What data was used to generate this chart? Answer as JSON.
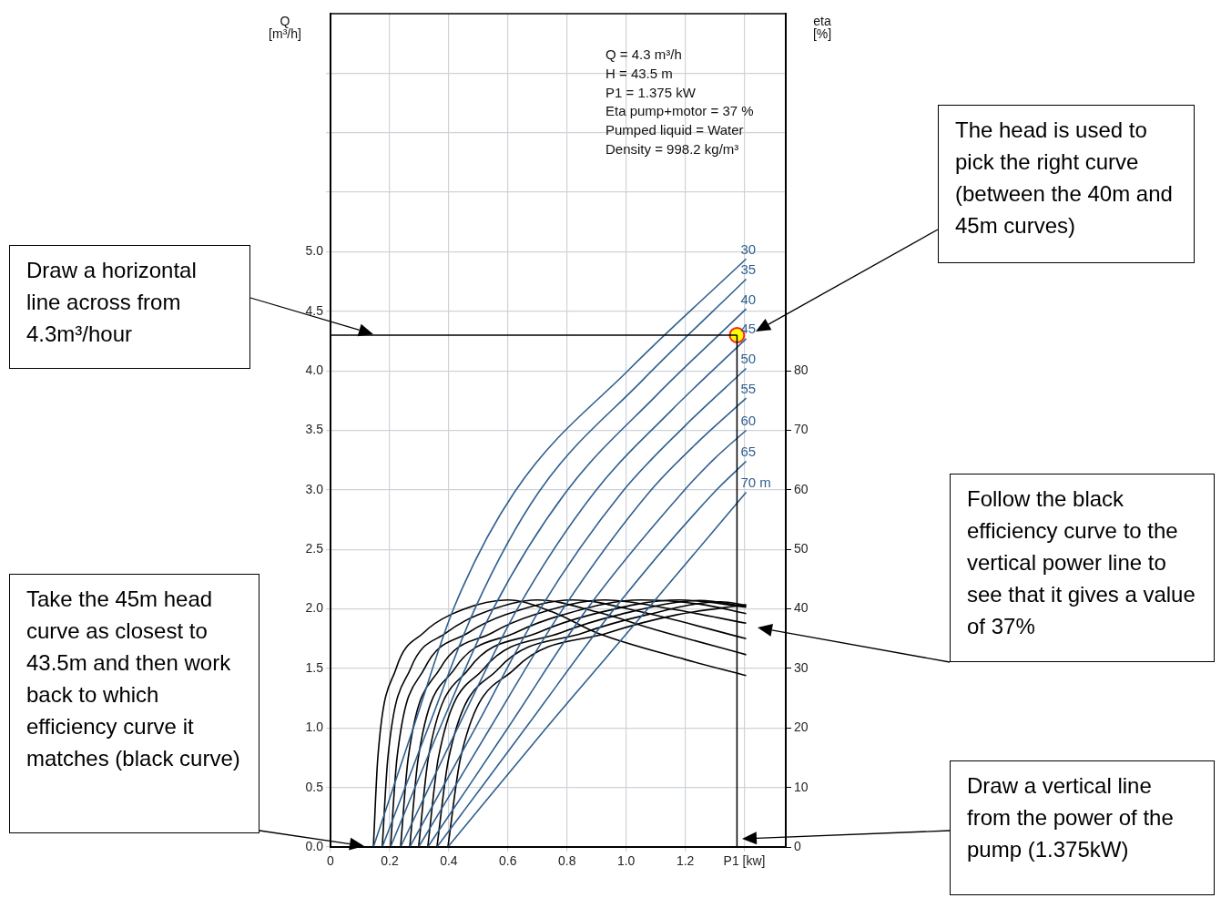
{
  "chart_data": {
    "type": "line",
    "ylabel": "Q [m³/h]",
    "y2label": "eta [%]",
    "xlim": [
      0,
      1.54
    ],
    "xticks": [
      0,
      0.2,
      0.4,
      0.6,
      0.8,
      {
        "value": 1,
        "label": "1.0"
      },
      1.2,
      {
        "value": 1.4,
        "label": "P1 [kw]"
      }
    ],
    "ylim": [
      0,
      7
    ],
    "yticks": [
      {
        "value": 0,
        "label": "0.0"
      },
      0.5,
      {
        "value": 1,
        "label": "1.0"
      },
      1.5,
      {
        "value": 2,
        "label": "2.0"
      },
      2.5,
      {
        "value": 3,
        "label": "3.0"
      },
      3.5,
      {
        "value": 4,
        "label": "4.0"
      },
      4.5,
      {
        "value": 5,
        "label": "5.0"
      },
      {
        "value": 5.5,
        "label": null
      },
      {
        "value": 6,
        "label": null
      },
      {
        "value": 6.5,
        "label": null
      }
    ],
    "y2lim": [
      0,
      140
    ],
    "y2ticks": [
      0,
      10,
      20,
      30,
      40,
      50,
      60,
      70,
      80
    ],
    "grid": true,
    "legend": false,
    "marker": "none",
    "series": [
      {
        "name": "30",
        "color": "#2f5f8f",
        "x": [
          0.145,
          0.28,
          0.416,
          0.622,
          1.014,
          1.406
        ],
        "values": [
          0,
          1,
          2,
          2.98,
          4.02,
          4.94
        ]
      },
      {
        "name": "35",
        "color": "#2f5f8f",
        "x": [
          0.175,
          0.33,
          0.488,
          0.704,
          1.055,
          1.406
        ],
        "values": [
          0,
          1,
          2,
          2.98,
          3.92,
          4.77
        ]
      },
      {
        "name": "40",
        "color": "#2f5f8f",
        "x": [
          0.203,
          0.37,
          0.55,
          0.796,
          1.101,
          1.406
        ],
        "values": [
          0,
          1,
          2,
          2.98,
          3.79,
          4.52
        ]
      },
      {
        "name": "45",
        "color": "#2f5f8f",
        "x": [
          0.237,
          0.43,
          0.632,
          0.893,
          1.15,
          1.406
        ],
        "values": [
          0,
          1,
          2,
          2.98,
          3.66,
          4.27
        ]
      },
      {
        "name": "50",
        "color": "#2f5f8f",
        "x": [
          0.268,
          0.49,
          0.709,
          0.986,
          1.196,
          1.406
        ],
        "values": [
          0,
          1,
          2,
          2.98,
          3.53,
          4.02
        ]
      },
      {
        "name": "55",
        "color": "#2f5f8f",
        "x": [
          0.298,
          0.54,
          0.786,
          1.078,
          1.242,
          1.406
        ],
        "values": [
          0,
          1,
          2,
          2.98,
          3.4,
          3.77
        ]
      },
      {
        "name": "60",
        "color": "#2f5f8f",
        "x": [
          0.329,
          0.6,
          0.868,
          1.191,
          1.298,
          1.406
        ],
        "values": [
          0,
          1,
          2,
          2.98,
          3.26,
          3.5
        ]
      },
      {
        "name": "65",
        "color": "#2f5f8f",
        "x": [
          0.36,
          0.66,
          0.96,
          1.298,
          1.406
        ],
        "values": [
          0,
          1,
          2,
          2.98,
          3.24
        ]
      },
      {
        "name": "70 m",
        "color": "#2f5f8f",
        "x": [
          0.397,
          0.73,
          1.073,
          1.406
        ],
        "values": [
          0,
          1,
          2,
          2.98
        ]
      },
      {
        "color": "#000000",
        "axis": "y2",
        "x": [
          0.145,
          0.16,
          0.222,
          0.315,
          0.405,
          0.6,
          0.75,
          0.9,
          1.2,
          1.406
        ],
        "values": [
          0,
          15,
          30,
          36,
          39,
          41.5,
          39.5,
          36,
          31.5,
          28.8
        ]
      },
      {
        "color": "#000000",
        "axis": "y2",
        "x": [
          0.175,
          0.194,
          0.271,
          0.392,
          0.499,
          0.7,
          0.9,
          1.1,
          1.406
        ],
        "values": [
          0,
          15,
          30,
          36,
          39,
          41.5,
          39.5,
          36.5,
          32.3
        ]
      },
      {
        "color": "#000000",
        "axis": "y2",
        "x": [
          0.203,
          0.225,
          0.318,
          0.466,
          0.591,
          0.82,
          1.05,
          1.406
        ],
        "values": [
          0,
          15,
          30,
          36,
          39,
          41.5,
          39.5,
          35
        ]
      },
      {
        "color": "#000000",
        "axis": "y2",
        "x": [
          0.237,
          0.263,
          0.371,
          0.547,
          0.689,
          0.93,
          1.15,
          1.406
        ],
        "values": [
          0,
          15,
          30,
          36,
          39,
          41.5,
          40,
          37.6
        ]
      },
      {
        "color": "#000000",
        "axis": "y2",
        "x": [
          0.268,
          0.297,
          0.421,
          0.625,
          0.785,
          1.05,
          1.25,
          1.406
        ],
        "values": [
          0,
          15,
          30,
          36,
          39,
          41.5,
          40.8,
          39.2
        ]
      },
      {
        "color": "#000000",
        "axis": "y2",
        "x": [
          0.298,
          0.331,
          0.469,
          0.701,
          0.879,
          1.18,
          1.406
        ],
        "values": [
          0,
          15,
          30,
          36,
          39,
          41.5,
          40.3
        ]
      },
      {
        "color": "#000000",
        "axis": "y2",
        "x": [
          0.329,
          0.365,
          0.519,
          0.779,
          0.974,
          1.25,
          1.406
        ],
        "values": [
          0,
          15,
          30,
          36,
          39,
          41.4,
          40.4
        ]
      },
      {
        "color": "#000000",
        "axis": "y2",
        "x": [
          0.36,
          0.4,
          0.569,
          0.856,
          1.069,
          1.32,
          1.406
        ],
        "values": [
          0,
          15,
          30,
          36,
          39,
          41.2,
          40.6
        ]
      },
      {
        "color": "#000000",
        "axis": "y2",
        "x": [
          0.397,
          0.44,
          0.625,
          0.94,
          1.17,
          1.406
        ],
        "values": [
          0,
          15,
          30,
          36,
          39,
          40.7
        ]
      },
      {
        "type": "scatter",
        "marker": "circle",
        "color": "#ffff00",
        "x": [
          1.375
        ],
        "values": [
          4.3
        ]
      }
    ],
    "ref_lines": [
      {
        "axis": "y",
        "value": 4.3,
        "color": "#000000"
      },
      {
        "axis": "x",
        "value": 1.375,
        "color": "#000000"
      }
    ],
    "annotations": [
      "Q = 4.3 m³/h",
      "H = 43.5 m",
      "P1 = 1.375 kW",
      "Eta pump+motor = 37 %",
      "Pumped liquid = Water",
      "Density = 998.2 kg/m³",
      "Draw a horizontal line across from 4.3m³/hour",
      "The head is used to pick the right curve (between the 40m and 45m curves)",
      "Follow the black efficiency curve to the vertical power line to see that it gives a value of 37%",
      "Take the 45m head curve as closest to 43.5m and then work back to which efficiency curve it matches (black curve)",
      "Draw a vertical line from the power of the pump (1.375kW)"
    ]
  }
}
